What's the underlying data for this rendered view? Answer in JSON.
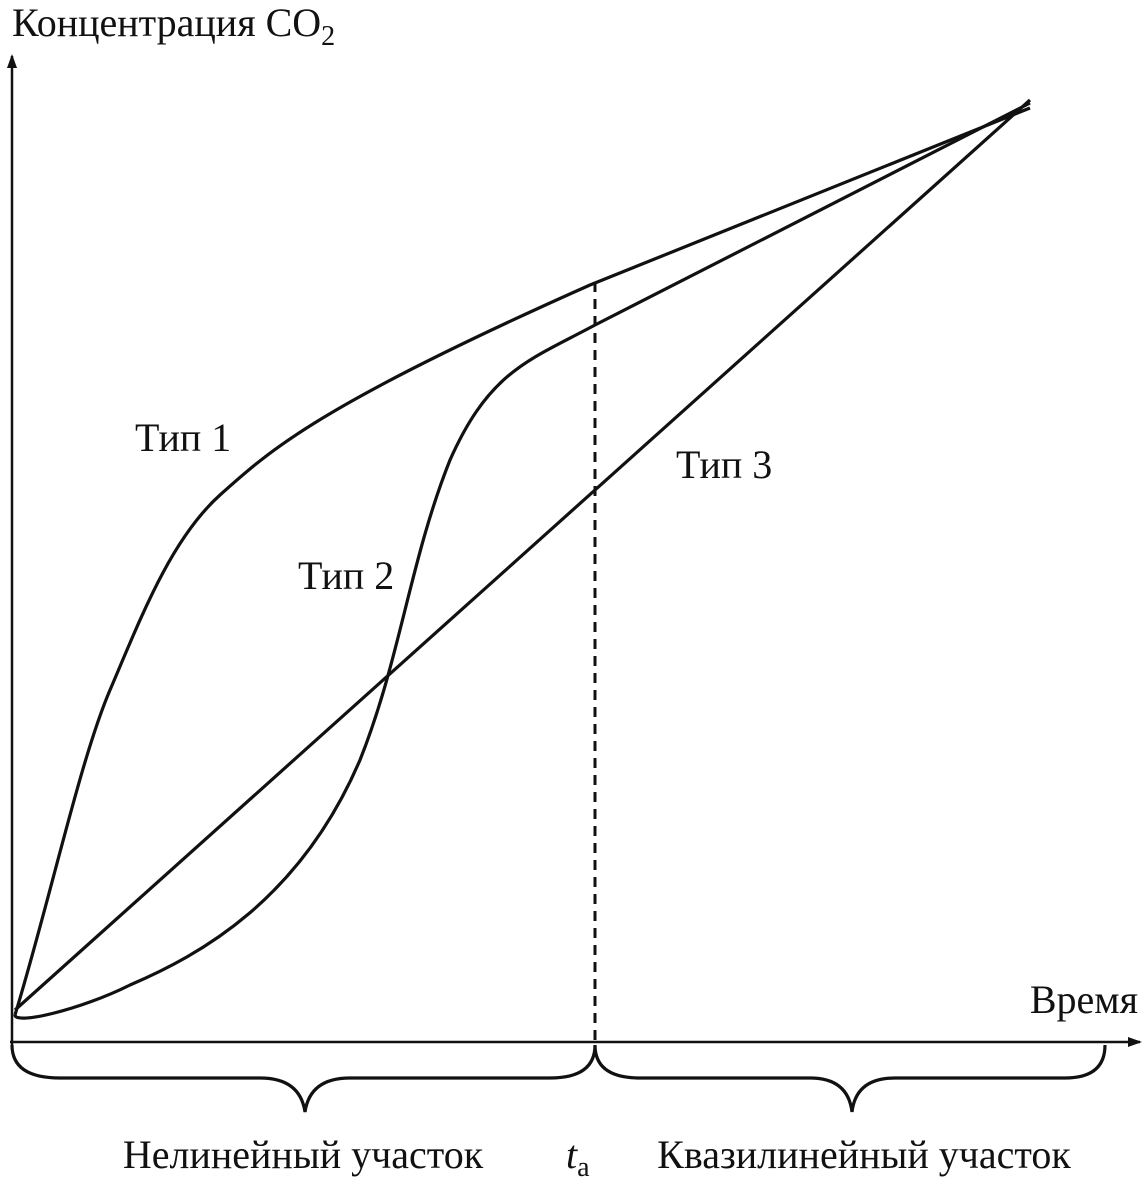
{
  "axes": {
    "y_label": {
      "text": "Концентрация CO",
      "subscript": "2"
    },
    "x_label": "Время"
  },
  "curves": {
    "type1": "Тип 1",
    "type2": "Тип 2",
    "type3": "Тип 3"
  },
  "regions": {
    "nonlinear": "Нелинейный участок",
    "boundary": {
      "text": "t",
      "subscript": "а"
    },
    "quasilinear": "Квазилинейный участок"
  }
}
